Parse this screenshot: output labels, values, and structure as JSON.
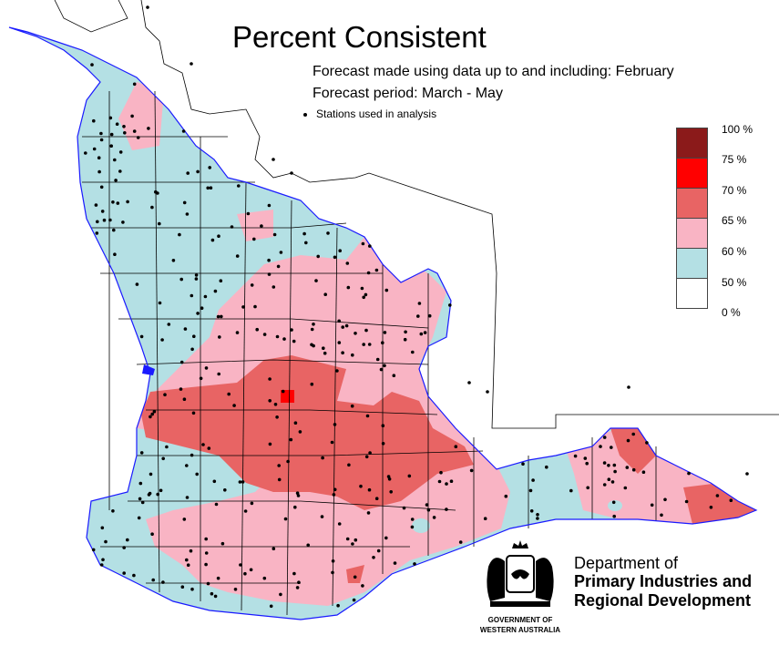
{
  "title": "Percent Consistent",
  "subtitle_line1": "Forecast made using data up to and including: February",
  "subtitle_line2": "Forecast period: March - May",
  "stations_label": "Stations used in analysis",
  "legend": [
    {
      "label": "100 %",
      "color": "#8b1a1a"
    },
    {
      "label": "75 %",
      "color": "#ff0000"
    },
    {
      "label": "70 %",
      "color": "#e86464"
    },
    {
      "label": "65 %",
      "color": "#f9b4c4"
    },
    {
      "label": "60 %",
      "color": "#b4e0e4"
    },
    {
      "label": "50 %",
      "color": "#ffffff"
    },
    {
      "label": "0 %",
      "color": null
    }
  ],
  "colors": {
    "land_blue": "#b4e0e4",
    "land_pink": "#f9b4c4",
    "land_red": "#e86464",
    "land_bright": "#ff0000",
    "coast": "#1a1aff",
    "boundary": "#000000"
  },
  "logo": {
    "dept_line1": "Department of",
    "dept_line2": "Primary Industries and",
    "dept_line3": "Regional Development",
    "gov_line1": "GOVERNMENT OF",
    "gov_line2": "WESTERN AUSTRALIA"
  }
}
